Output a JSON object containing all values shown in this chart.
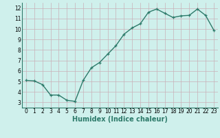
{
  "x": [
    0,
    1,
    2,
    3,
    4,
    5,
    6,
    7,
    8,
    9,
    10,
    11,
    12,
    13,
    14,
    15,
    16,
    17,
    18,
    19,
    20,
    21,
    22,
    23
  ],
  "y": [
    5.1,
    5.05,
    4.7,
    3.7,
    3.7,
    3.2,
    3.1,
    5.1,
    6.3,
    6.8,
    7.6,
    8.4,
    9.5,
    10.1,
    10.5,
    11.6,
    11.9,
    11.5,
    11.1,
    11.25,
    11.3,
    11.9,
    11.3,
    9.9
  ],
  "line_color": "#2d7a6a",
  "marker": "+",
  "marker_size": 3,
  "marker_lw": 0.9,
  "bg_color": "#cff0ec",
  "grid_color": "#c8b0b8",
  "spine_color": "#2d7a6a",
  "xlabel": "Humidex (Indice chaleur)",
  "xlim": [
    -0.5,
    23.5
  ],
  "ylim": [
    2.5,
    12.5
  ],
  "yticks": [
    3,
    4,
    5,
    6,
    7,
    8,
    9,
    10,
    11,
    12
  ],
  "xticks": [
    0,
    1,
    2,
    3,
    4,
    5,
    6,
    7,
    8,
    9,
    10,
    11,
    12,
    13,
    14,
    15,
    16,
    17,
    18,
    19,
    20,
    21,
    22,
    23
  ],
  "tick_fontsize": 5.5,
  "xlabel_fontsize": 7.0,
  "line_width": 1.0
}
